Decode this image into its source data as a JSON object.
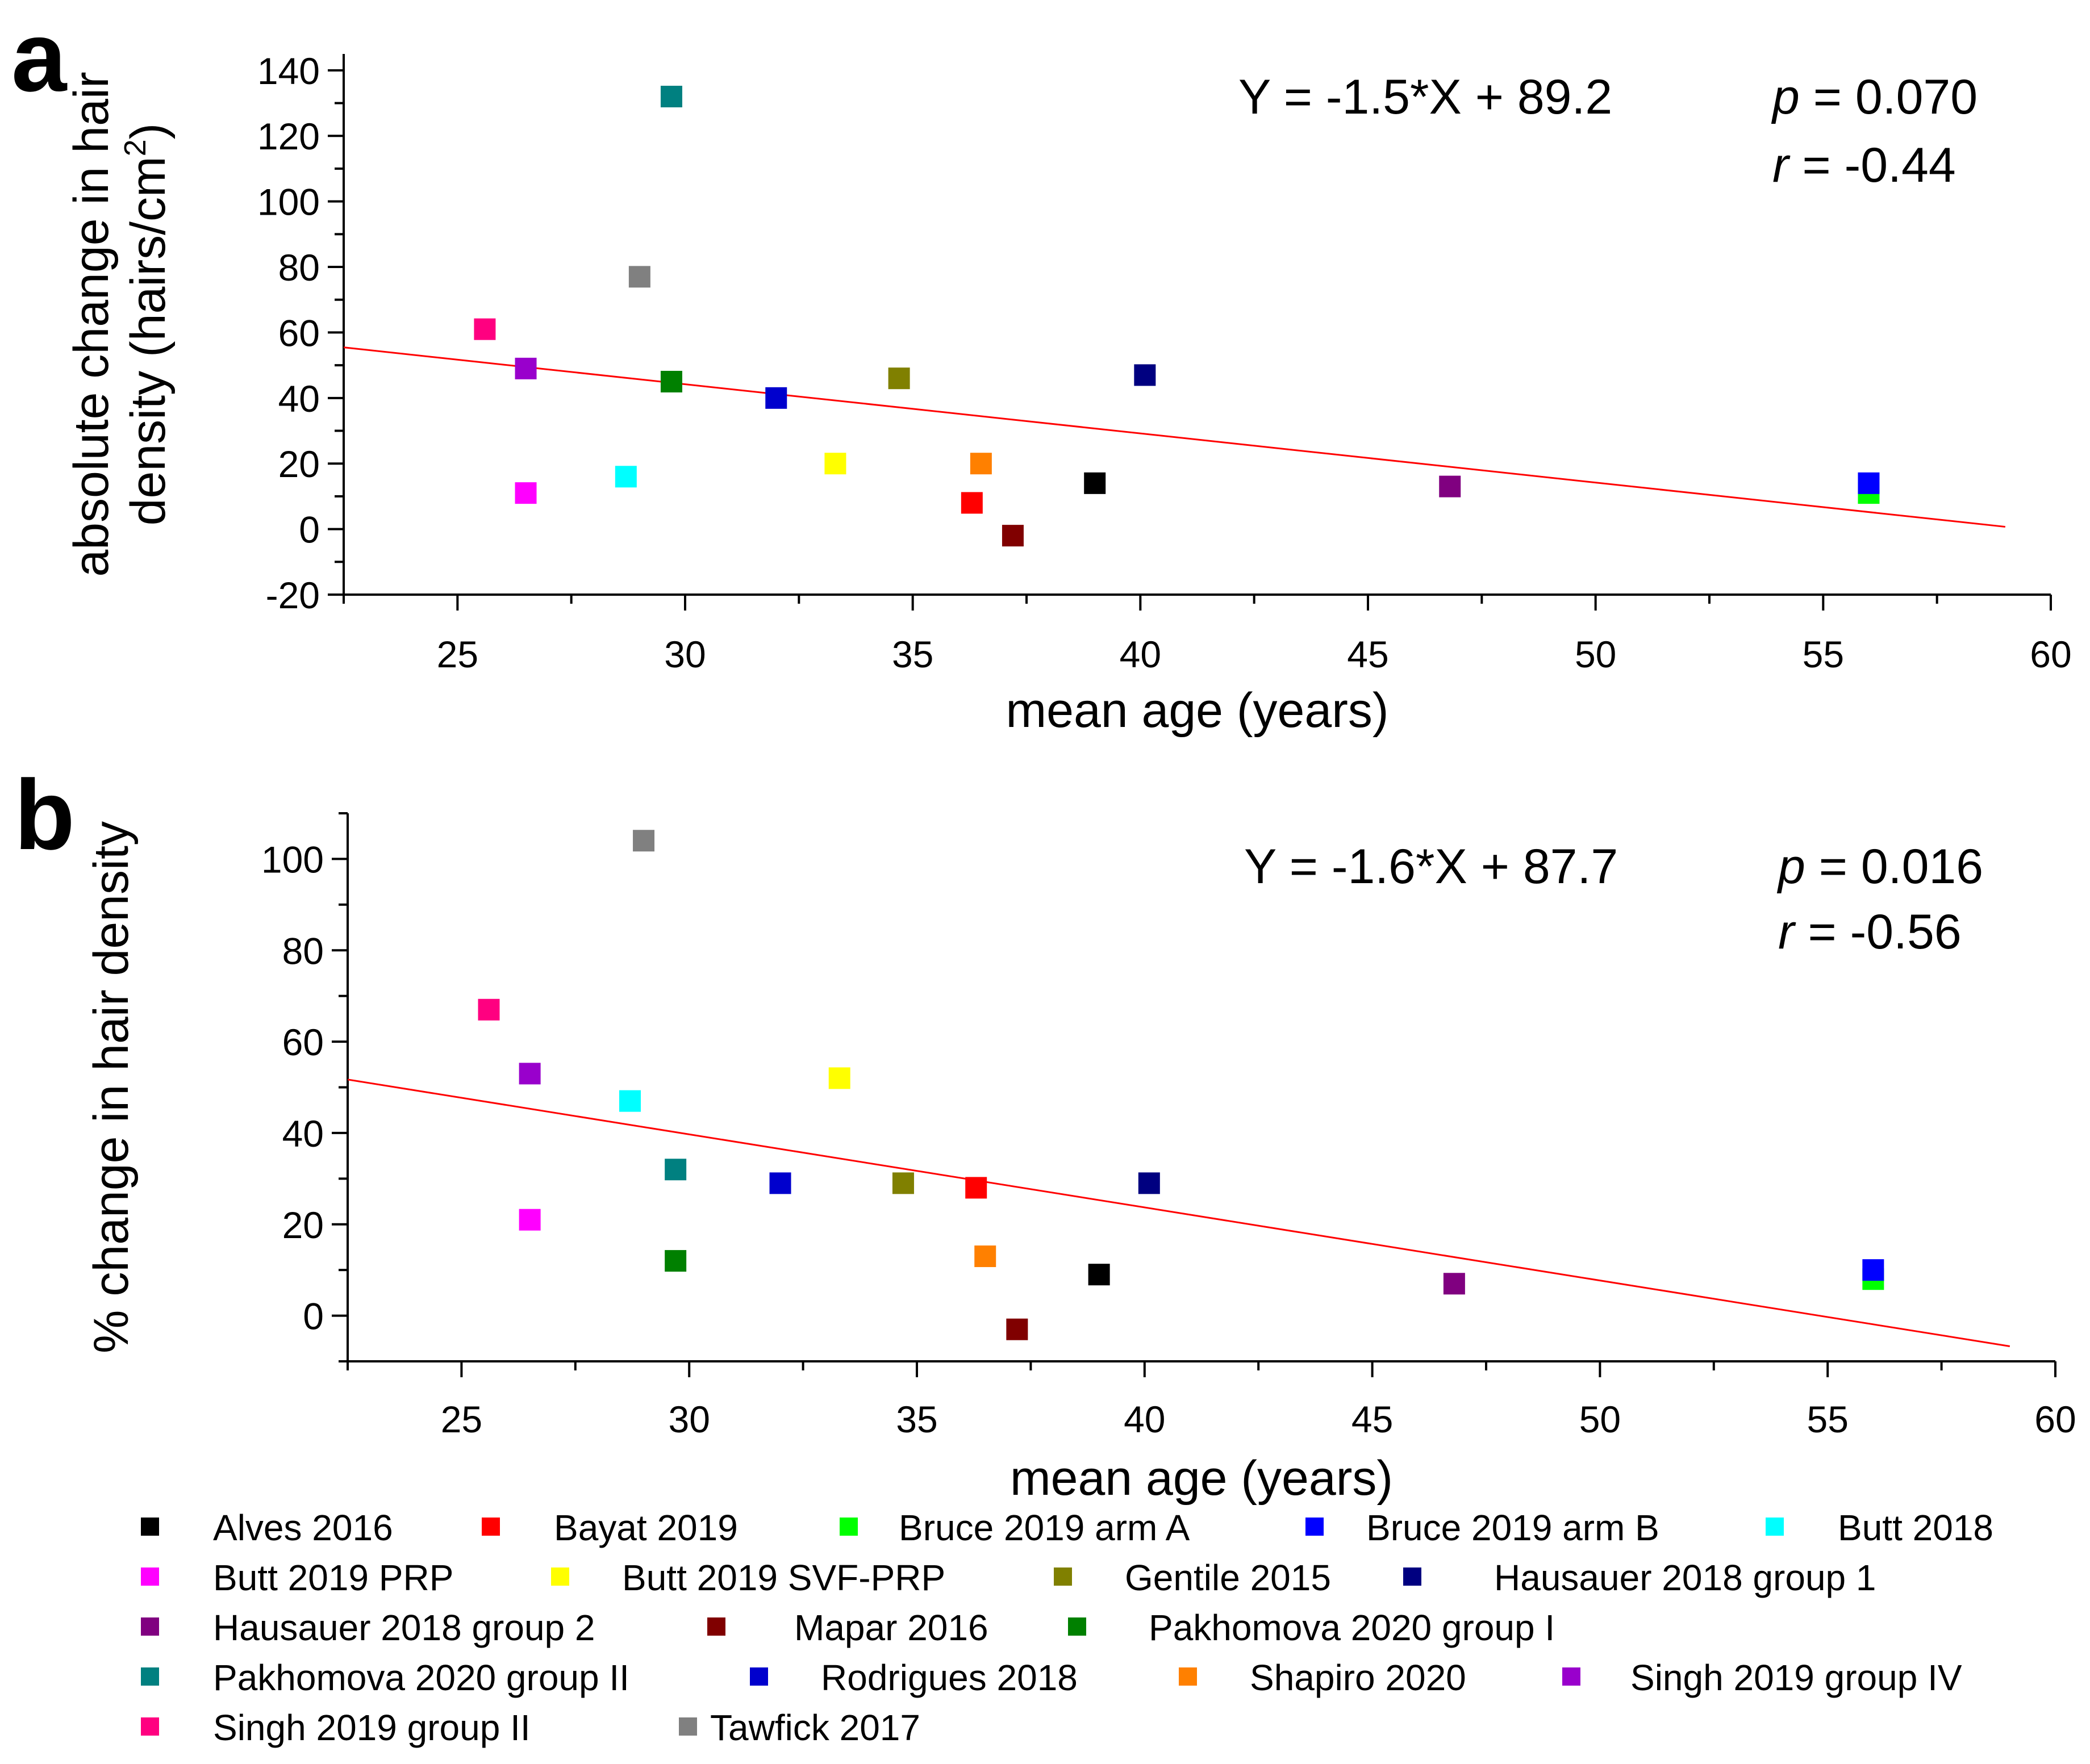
{
  "chart_data": [
    {
      "panel": "a",
      "type": "scatter",
      "xlabel": "mean age (years)",
      "ylabel": "absolute change in hair density (hairs/cm²)",
      "ylabel_line1": "absolute change in hair",
      "ylabel_line2_main": "density (hairs/cm",
      "ylabel_line2_sup": "2",
      "ylabel_line2_end": ")",
      "xlim": [
        22.5,
        60
      ],
      "ylim": [
        -20,
        145
      ],
      "xticks": [
        25,
        30,
        35,
        40,
        45,
        50,
        55,
        60
      ],
      "yticks": [
        -20,
        0,
        20,
        40,
        60,
        80,
        100,
        120,
        140
      ],
      "equation": "Y = -1.5*X + 89.2",
      "p_label": "p",
      "p_value": " = 0.070",
      "r_label": "r",
      "r_value": " = -0.44",
      "fit": {
        "slope": -1.5,
        "intercept": 89.2,
        "x_range": [
          22.5,
          59
        ]
      },
      "points": [
        {
          "series": "Alves 2016",
          "x": 39.0,
          "y": 14
        },
        {
          "series": "Bayat 2019",
          "x": 36.3,
          "y": 8
        },
        {
          "series": "Bruce 2019 arm A",
          "x": 56.0,
          "y": 11
        },
        {
          "series": "Bruce 2019 arm B",
          "x": 56.0,
          "y": 14
        },
        {
          "series": "Butt 2018",
          "x": 28.7,
          "y": 16
        },
        {
          "series": "Butt 2019 PRP",
          "x": 26.5,
          "y": 11
        },
        {
          "series": "Butt 2019 SVF-PRP",
          "x": 33.3,
          "y": 20
        },
        {
          "series": "Gentile 2015",
          "x": 34.7,
          "y": 46
        },
        {
          "series": "Hausauer 2018 group 1",
          "x": 40.1,
          "y": 47
        },
        {
          "series": "Hausauer 2018 group 2",
          "x": 46.8,
          "y": 13
        },
        {
          "series": "Mapar 2016",
          "x": 37.2,
          "y": -2
        },
        {
          "series": "Pakhomova 2020 group I",
          "x": 29.7,
          "y": 45
        },
        {
          "series": "Pakhomova 2020 group II",
          "x": 29.7,
          "y": 132
        },
        {
          "series": "Rodrigues 2018",
          "x": 32.0,
          "y": 40
        },
        {
          "series": "Shapiro 2020",
          "x": 36.5,
          "y": 20
        },
        {
          "series": "Singh 2019 group IV",
          "x": 26.5,
          "y": 49
        },
        {
          "series": "Singh 2019 group II",
          "x": 25.6,
          "y": 61
        },
        {
          "series": "Tawfick 2017",
          "x": 29.0,
          "y": 77
        }
      ]
    },
    {
      "panel": "b",
      "type": "scatter",
      "xlabel": "mean age (years)",
      "ylabel": "% change in hair density",
      "xlim": [
        22.5,
        60
      ],
      "ylim": [
        -10,
        110
      ],
      "xticks": [
        25,
        30,
        35,
        40,
        45,
        50,
        55,
        60
      ],
      "yticks": [
        0,
        20,
        40,
        60,
        80,
        100
      ],
      "equation": "Y = -1.6*X + 87.7",
      "p_label": "p",
      "p_value": " = 0.016",
      "r_label": "r",
      "r_value": " = -0.56",
      "fit": {
        "slope": -1.6,
        "intercept": 87.7,
        "x_range": [
          22.5,
          59
        ]
      },
      "points": [
        {
          "series": "Alves 2016",
          "x": 39.0,
          "y": 9
        },
        {
          "series": "Bayat 2019",
          "x": 36.3,
          "y": 28
        },
        {
          "series": "Bruce 2019 arm A",
          "x": 56.0,
          "y": 8
        },
        {
          "series": "Bruce 2019 arm B",
          "x": 56.0,
          "y": 10
        },
        {
          "series": "Butt 2018",
          "x": 28.7,
          "y": 47
        },
        {
          "series": "Butt 2019 PRP",
          "x": 26.5,
          "y": 21
        },
        {
          "series": "Butt 2019 SVF-PRP",
          "x": 33.3,
          "y": 52
        },
        {
          "series": "Gentile 2015",
          "x": 34.7,
          "y": 29
        },
        {
          "series": "Hausauer 2018 group 1",
          "x": 40.1,
          "y": 29
        },
        {
          "series": "Hausauer 2018 group 2",
          "x": 46.8,
          "y": 7
        },
        {
          "series": "Mapar 2016",
          "x": 37.2,
          "y": -3
        },
        {
          "series": "Pakhomova 2020 group I",
          "x": 29.7,
          "y": 12
        },
        {
          "series": "Pakhomova 2020 group II",
          "x": 29.7,
          "y": 32
        },
        {
          "series": "Rodrigues 2018",
          "x": 32.0,
          "y": 29
        },
        {
          "series": "Shapiro 2020",
          "x": 36.5,
          "y": 13
        },
        {
          "series": "Singh 2019 group IV",
          "x": 26.5,
          "y": 53
        },
        {
          "series": "Singh 2019 group II",
          "x": 25.6,
          "y": 67
        },
        {
          "series": "Tawfick 2017",
          "x": 29.0,
          "y": 104
        }
      ]
    }
  ],
  "legend": [
    {
      "name": "Alves 2016",
      "color": "#000000"
    },
    {
      "name": "Bayat 2019",
      "color": "#ff0000"
    },
    {
      "name": "Bruce 2019 arm A",
      "color": "#00ff00"
    },
    {
      "name": "Bruce 2019 arm B",
      "color": "#0000ff"
    },
    {
      "name": "Butt 2018",
      "color": "#00ffff"
    },
    {
      "name": "Butt 2019 PRP",
      "color": "#ff00ff"
    },
    {
      "name": "Butt 2019 SVF-PRP",
      "color": "#ffff00"
    },
    {
      "name": "Gentile 2015",
      "color": "#808000"
    },
    {
      "name": "Hausauer 2018 group 1",
      "color": "#000080"
    },
    {
      "name": "Hausauer 2018 group 2",
      "color": "#800080"
    },
    {
      "name": "Mapar 2016",
      "color": "#800000"
    },
    {
      "name": "Pakhomova 2020 group I",
      "color": "#008000"
    },
    {
      "name": "Pakhomova 2020 group II",
      "color": "#008080"
    },
    {
      "name": "Rodrigues 2018",
      "color": "#0000cd"
    },
    {
      "name": "Shapiro 2020",
      "color": "#ff8000"
    },
    {
      "name": "Singh 2019 group IV",
      "color": "#9900cc"
    },
    {
      "name": "Singh 2019 group II",
      "color": "#ff0080"
    },
    {
      "name": "Tawfick 2017",
      "color": "#808080"
    }
  ],
  "fit_color": "#ff0000"
}
